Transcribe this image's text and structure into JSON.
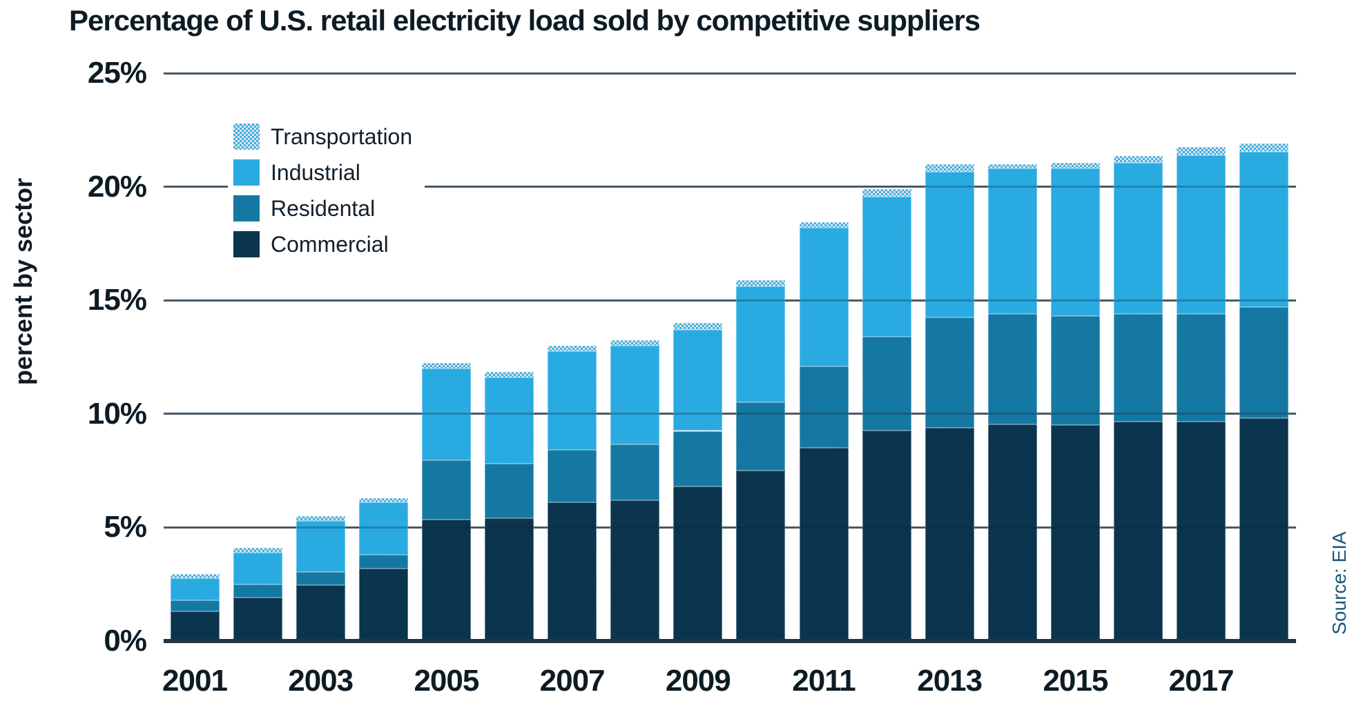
{
  "title": "Percentage of U.S. retail electricity load sold by competitive suppliers",
  "y_axis_title": "percent by sector",
  "source": "Source: EIA",
  "legend": {
    "items": [
      {
        "label": "Transportation",
        "pattern": true,
        "color": "#3FAFE0",
        "color2": "#D9E5ED"
      },
      {
        "label": "Industrial",
        "pattern": false,
        "color": "#29ABE2"
      },
      {
        "label": "Residental",
        "pattern": false,
        "color": "#1478A3"
      },
      {
        "label": "Commercial",
        "pattern": false,
        "color": "#0B344E"
      }
    ]
  },
  "chart_data": {
    "type": "bar",
    "stacked": true,
    "title": "Percentage of U.S. retail electricity load sold by competitive suppliers",
    "xlabel": "",
    "ylabel": "percent by sector",
    "ylim": [
      0,
      25
    ],
    "grid": true,
    "legend_position": "upper-left",
    "categories": [
      "2001",
      "2002",
      "2003",
      "2004",
      "2005",
      "2006",
      "2007",
      "2008",
      "2009",
      "2010",
      "2011",
      "2012",
      "2013",
      "2014",
      "2015",
      "2016",
      "2017",
      "2018"
    ],
    "series": [
      {
        "name": "Commercial",
        "color": "#0B344E",
        "pattern": false,
        "values": [
          1.3,
          1.9,
          2.45,
          3.2,
          5.35,
          5.4,
          6.1,
          6.2,
          6.8,
          7.5,
          8.5,
          9.25,
          9.4,
          9.55,
          9.5,
          9.65,
          9.65,
          9.8
        ]
      },
      {
        "name": "Residental",
        "color": "#1478A3",
        "pattern": false,
        "values": [
          0.5,
          0.6,
          0.6,
          0.6,
          2.6,
          2.4,
          2.3,
          2.45,
          2.45,
          3.0,
          3.6,
          4.15,
          4.85,
          4.85,
          4.8,
          4.75,
          4.75,
          4.9
        ]
      },
      {
        "name": "Industrial",
        "color": "#29ABE2",
        "pattern": false,
        "values": [
          0.95,
          1.4,
          2.25,
          2.3,
          4.05,
          3.8,
          4.35,
          4.35,
          4.45,
          5.1,
          6.1,
          6.15,
          6.4,
          6.4,
          6.5,
          6.65,
          7.0,
          6.85
        ]
      },
      {
        "name": "Transportation",
        "color": "#3FAFE0",
        "pattern": true,
        "values": [
          0.2,
          0.2,
          0.2,
          0.2,
          0.25,
          0.25,
          0.25,
          0.25,
          0.3,
          0.3,
          0.25,
          0.35,
          0.35,
          0.2,
          0.25,
          0.3,
          0.35,
          0.35
        ]
      }
    ],
    "totals": [
      2.95,
      4.1,
      5.5,
      6.3,
      12.25,
      11.85,
      13.0,
      13.25,
      14.0,
      15.9,
      18.45,
      19.9,
      21.0,
      21.0,
      21.05,
      21.35,
      21.75,
      21.9
    ],
    "y_ticks": [
      {
        "value": 25,
        "label": "25%"
      },
      {
        "value": 20,
        "label": "20%"
      },
      {
        "value": 15,
        "label": "15%"
      },
      {
        "value": 10,
        "label": "10%"
      },
      {
        "value": 5,
        "label": "5%"
      },
      {
        "value": 0,
        "label": "0%"
      }
    ],
    "x_tick_labels": [
      {
        "index": 0,
        "label": "2001"
      },
      {
        "index": 2,
        "label": "2003"
      },
      {
        "index": 4,
        "label": "2005"
      },
      {
        "index": 6,
        "label": "2007"
      },
      {
        "index": 8,
        "label": "2009"
      },
      {
        "index": 10,
        "label": "2011"
      },
      {
        "index": 12,
        "label": "2013"
      },
      {
        "index": 14,
        "label": "2015"
      },
      {
        "index": 16,
        "label": "2017"
      }
    ]
  },
  "style": {
    "gridline_color": "#5F7280",
    "axis_color": "#243440",
    "title_color": "#0D1B24",
    "source_color": "#1C5878"
  }
}
